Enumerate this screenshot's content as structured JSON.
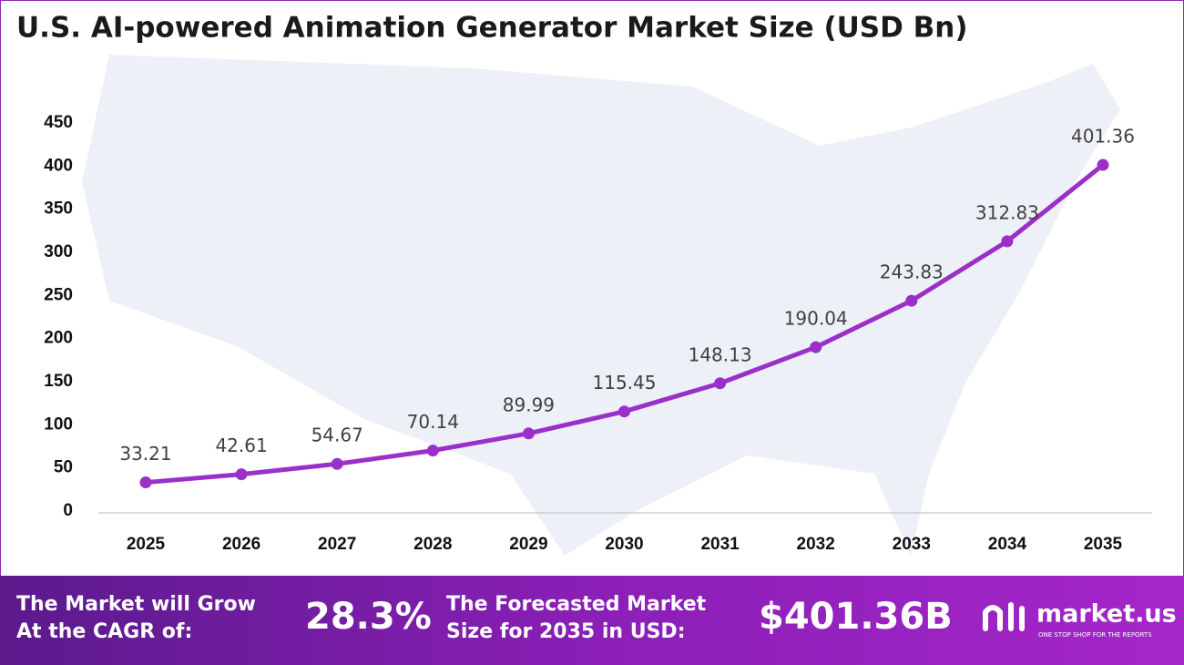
{
  "chart_data": {
    "type": "line",
    "title": "U.S. AI-powered Animation Generator Market Size (USD Bn)",
    "categories": [
      "2025",
      "2026",
      "2027",
      "2028",
      "2029",
      "2030",
      "2031",
      "2032",
      "2033",
      "2034",
      "2035"
    ],
    "series": [
      {
        "name": "Market Size",
        "color": "#9b30c9",
        "values": [
          33.21,
          42.61,
          54.67,
          70.14,
          89.99,
          115.45,
          148.13,
          190.04,
          243.83,
          312.83,
          401.36
        ]
      }
    ],
    "ylim": [
      0,
      450
    ],
    "yticks": [
      0,
      50,
      100,
      150,
      200,
      250,
      300,
      350,
      400,
      450
    ],
    "grid": false
  },
  "footer": {
    "cagr_label": [
      "The Market will Grow",
      "At the CAGR of:"
    ],
    "cagr_value": "28.3%",
    "forecast_label": [
      "The Forecasted Market",
      "Size for 2035 in USD:"
    ],
    "forecast_value": "$401.36B",
    "brand": "market.us",
    "tagline": "ONE STOP SHOP FOR THE REPORTS"
  }
}
